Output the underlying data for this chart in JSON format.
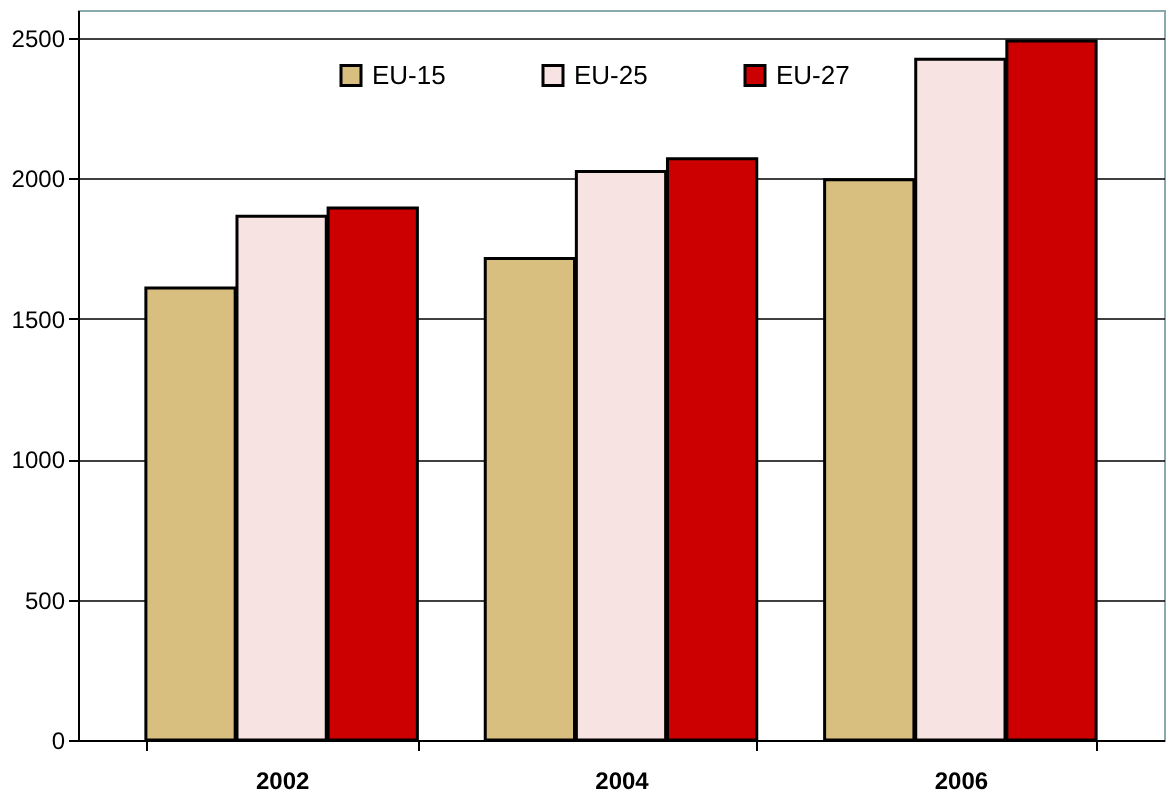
{
  "chart_data": {
    "type": "bar",
    "categories": [
      "2002",
      "2004",
      "2006"
    ],
    "series": [
      {
        "name": "EU-15",
        "color": "#d8bf80",
        "values": [
          1610,
          1715,
          1995
        ]
      },
      {
        "name": "EU-25",
        "color": "#f7e4e2",
        "values": [
          1865,
          2025,
          2425
        ]
      },
      {
        "name": "EU-27",
        "color": "#cc0000",
        "values": [
          1895,
          2070,
          2490
        ]
      }
    ],
    "ylim": [
      0,
      2600
    ],
    "yticks": [
      0,
      500,
      1000,
      1500,
      2000,
      2500
    ],
    "grid": "y",
    "legend": "top"
  }
}
